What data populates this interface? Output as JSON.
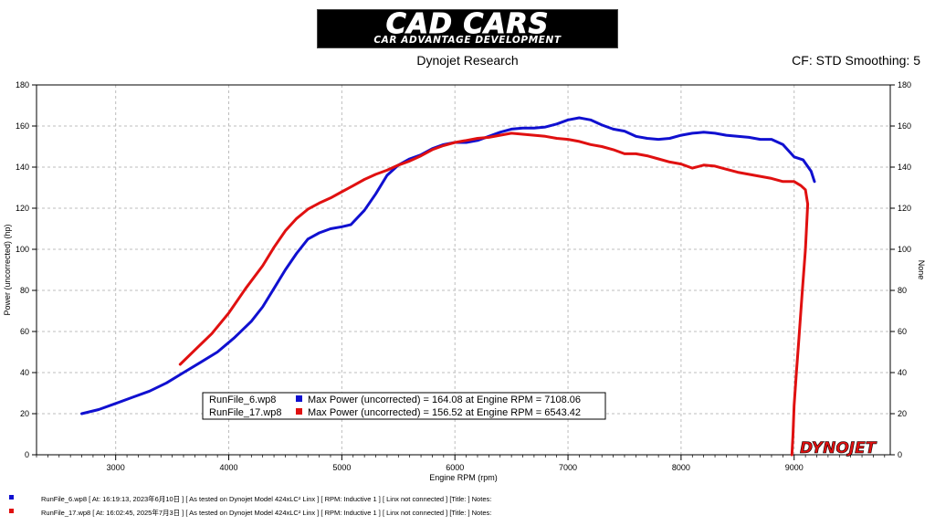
{
  "logo": {
    "line1": "CAD CARS",
    "line2": "CAR ADVANTAGE DEVELOPMENT"
  },
  "header": {
    "subtitle": "Dynojet Research",
    "cf": "CF: STD Smoothing: 5"
  },
  "footer": [
    {
      "color": "#1010d0",
      "text": "RunFile_6.wp8  [  At:  16:19:13,  2023年6月10日 ] [ As tested on Dynojet Model 424xLC² Linx ] [ RPM: Inductive 1 ] [ Linx not connected ] [Title: ]   Notes:"
    },
    {
      "color": "#e01010",
      "text": "RunFile_17.wp8  [  At:  16:02:45,  2025年7月3日 ] [ As tested on Dynojet Model 424xLC² Linx ] [ RPM: Inductive 1 ] [ Linx not connected ] [Title: ]   Notes:"
    }
  ],
  "watermark": "DYNOJET",
  "chart_data": {
    "type": "line",
    "xlabel": "Engine RPM (rpm)",
    "ylabel": "Power (uncorrected) (hp)",
    "y2label": "None",
    "xlim": [
      2300,
      9850
    ],
    "ylim": [
      0,
      180
    ],
    "x_ticks": [
      3000,
      4000,
      5000,
      6000,
      7000,
      8000,
      9000
    ],
    "y_ticks": [
      0,
      20,
      40,
      60,
      80,
      100,
      120,
      140,
      160,
      180
    ],
    "grid": true,
    "legend": [
      {
        "file": "RunFile_6.wp8",
        "color": "#1010d0",
        "text": "Max Power (uncorrected) = 164.08 at Engine RPM = 7108.06"
      },
      {
        "file": "RunFile_17.wp8",
        "color": "#e01010",
        "text": "Max Power (uncorrected) = 156.52 at Engine RPM = 6543.42"
      }
    ],
    "series": [
      {
        "name": "RunFile_6.wp8",
        "color": "#1010d0",
        "points": [
          [
            2700,
            20
          ],
          [
            2850,
            22
          ],
          [
            3000,
            25
          ],
          [
            3150,
            28
          ],
          [
            3300,
            31
          ],
          [
            3450,
            35
          ],
          [
            3600,
            40
          ],
          [
            3750,
            45
          ],
          [
            3900,
            50
          ],
          [
            4050,
            57
          ],
          [
            4200,
            65
          ],
          [
            4300,
            72
          ],
          [
            4400,
            81
          ],
          [
            4500,
            90
          ],
          [
            4600,
            98
          ],
          [
            4700,
            105
          ],
          [
            4800,
            108
          ],
          [
            4900,
            110
          ],
          [
            5000,
            111
          ],
          [
            5080,
            112
          ],
          [
            5200,
            119
          ],
          [
            5300,
            127
          ],
          [
            5400,
            136
          ],
          [
            5500,
            141
          ],
          [
            5600,
            144
          ],
          [
            5700,
            146
          ],
          [
            5800,
            149
          ],
          [
            5900,
            151
          ],
          [
            6000,
            152
          ],
          [
            6100,
            152
          ],
          [
            6200,
            153
          ],
          [
            6300,
            155
          ],
          [
            6400,
            157
          ],
          [
            6500,
            158.5
          ],
          [
            6600,
            159
          ],
          [
            6700,
            159
          ],
          [
            6800,
            159.5
          ],
          [
            6900,
            161
          ],
          [
            7000,
            163
          ],
          [
            7100,
            164
          ],
          [
            7200,
            163
          ],
          [
            7300,
            160.5
          ],
          [
            7400,
            158.5
          ],
          [
            7500,
            157.5
          ],
          [
            7600,
            155
          ],
          [
            7700,
            154
          ],
          [
            7800,
            153.5
          ],
          [
            7900,
            154
          ],
          [
            8000,
            155.5
          ],
          [
            8100,
            156.5
          ],
          [
            8200,
            157
          ],
          [
            8300,
            156.5
          ],
          [
            8400,
            155.5
          ],
          [
            8500,
            155
          ],
          [
            8600,
            154.5
          ],
          [
            8700,
            153.5
          ],
          [
            8800,
            153.5
          ],
          [
            8900,
            151
          ],
          [
            9000,
            145
          ],
          [
            9080,
            143.5
          ],
          [
            9150,
            138
          ],
          [
            9180,
            133
          ]
        ]
      },
      {
        "name": "RunFile_17.wp8",
        "color": "#e01010",
        "points": [
          [
            3570,
            44
          ],
          [
            3700,
            51
          ],
          [
            3850,
            59
          ],
          [
            4000,
            69
          ],
          [
            4150,
            81
          ],
          [
            4300,
            92
          ],
          [
            4400,
            101
          ],
          [
            4500,
            109
          ],
          [
            4600,
            115
          ],
          [
            4700,
            119.5
          ],
          [
            4800,
            122.5
          ],
          [
            4900,
            125
          ],
          [
            5000,
            128
          ],
          [
            5100,
            131
          ],
          [
            5200,
            134
          ],
          [
            5300,
            136.5
          ],
          [
            5400,
            138.5
          ],
          [
            5500,
            141
          ],
          [
            5600,
            143
          ],
          [
            5700,
            145.5
          ],
          [
            5800,
            148.5
          ],
          [
            5900,
            150.5
          ],
          [
            6000,
            152
          ],
          [
            6100,
            153
          ],
          [
            6200,
            154
          ],
          [
            6300,
            154.5
          ],
          [
            6400,
            155.5
          ],
          [
            6500,
            156.5
          ],
          [
            6600,
            156
          ],
          [
            6700,
            155.5
          ],
          [
            6800,
            155
          ],
          [
            6900,
            154
          ],
          [
            7000,
            153.5
          ],
          [
            7100,
            152.5
          ],
          [
            7200,
            151
          ],
          [
            7300,
            150
          ],
          [
            7400,
            148.5
          ],
          [
            7500,
            146.5
          ],
          [
            7600,
            146.5
          ],
          [
            7700,
            145.5
          ],
          [
            7800,
            144
          ],
          [
            7900,
            142.5
          ],
          [
            8000,
            141.5
          ],
          [
            8100,
            139.5
          ],
          [
            8200,
            141
          ],
          [
            8300,
            140.5
          ],
          [
            8400,
            139
          ],
          [
            8500,
            137.5
          ],
          [
            8600,
            136.5
          ],
          [
            8700,
            135.5
          ],
          [
            8800,
            134.5
          ],
          [
            8900,
            133
          ],
          [
            9000,
            133
          ],
          [
            9060,
            131
          ],
          [
            9100,
            129
          ],
          [
            9120,
            122
          ],
          [
            9100,
            100
          ],
          [
            9070,
            78
          ],
          [
            9040,
            55
          ],
          [
            9020,
            40
          ],
          [
            9000,
            24
          ],
          [
            8990,
            10
          ],
          [
            8980,
            0
          ]
        ]
      }
    ]
  }
}
